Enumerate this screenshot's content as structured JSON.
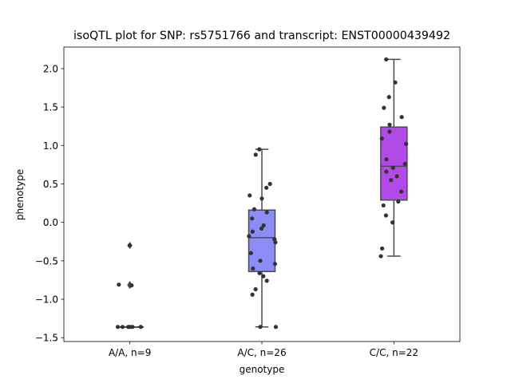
{
  "chart_data": {
    "type": "box",
    "title": "isoQTL plot for SNP: rs5751766 and transcript: ENST00000439492",
    "xlabel": "genotype",
    "ylabel": "phenotype",
    "ylim": [
      -1.55,
      2.28
    ],
    "yticks": [
      -1.5,
      -1.0,
      -0.5,
      0.0,
      0.5,
      1.0,
      1.5,
      2.0
    ],
    "ytick_labels": [
      "−1.5",
      "−1.0",
      "−0.5",
      "0.0",
      "0.5",
      "1.0",
      "1.5",
      "2.0"
    ],
    "grid": false,
    "categories": [
      "A/A, n=9",
      "A/C, n=26",
      "C/C, n=22"
    ],
    "colors": {
      "A/A": "#5b5bf0",
      "A/C": "#8c8cf7",
      "C/C": "#b24ae8",
      "box_edge": "#4b4b4b",
      "point": "#333333"
    },
    "boxes": [
      {
        "name": "A/A",
        "q1": -1.36,
        "median": -1.36,
        "q3": -1.36,
        "whisker_low": -1.36,
        "whisker_high": -1.36,
        "outliers": [
          -0.3,
          -0.81,
          -0.82
        ],
        "points": [
          -0.3,
          -0.82,
          -0.81,
          -1.36,
          -1.36,
          -1.36,
          -1.36,
          -1.36,
          -1.36
        ]
      },
      {
        "name": "A/C",
        "q1": -0.64,
        "median": -0.2,
        "q3": 0.16,
        "whisker_low": -1.36,
        "whisker_high": 0.95,
        "outliers": [],
        "points": [
          0.95,
          0.88,
          0.5,
          0.45,
          0.35,
          0.31,
          0.17,
          0.13,
          0.05,
          -0.04,
          -0.08,
          -0.12,
          -0.18,
          -0.22,
          -0.26,
          -0.4,
          -0.5,
          -0.54,
          -0.6,
          -0.66,
          -0.7,
          -0.76,
          -0.87,
          -0.94,
          -1.36,
          -1.36
        ]
      },
      {
        "name": "C/C",
        "q1": 0.29,
        "median": 0.73,
        "q3": 1.24,
        "whisker_low": -0.44,
        "whisker_high": 2.12,
        "outliers": [],
        "points": [
          2.12,
          1.82,
          1.63,
          1.49,
          1.37,
          1.27,
          1.18,
          1.09,
          1.02,
          0.82,
          0.76,
          0.71,
          0.66,
          0.6,
          0.55,
          0.4,
          0.27,
          0.22,
          0.09,
          0.0,
          -0.34,
          -0.44
        ]
      }
    ]
  }
}
